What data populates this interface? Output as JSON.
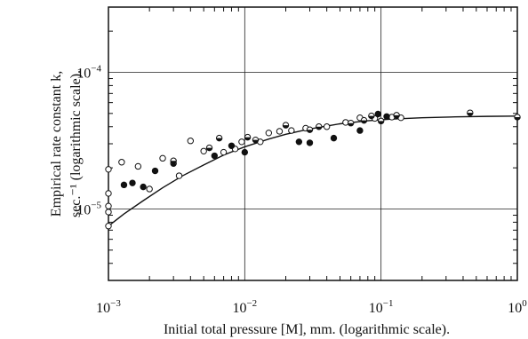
{
  "chart_data": {
    "type": "scatter",
    "title": "",
    "xlabel": "Initial total pressure [M], mm. (logarithmic scale).",
    "ylabel_line1": "Empirical rate constant k,",
    "ylabel_line2": "sec.⁻¹ (logarithmic scale).",
    "x_scale": "log",
    "y_scale": "log",
    "xlim": [
      0.001,
      1.0
    ],
    "ylim": [
      3e-06,
      0.0003
    ],
    "x_ticks": [
      {
        "base": "10",
        "exp": "−3",
        "value": 0.001
      },
      {
        "base": "10",
        "exp": "−2",
        "value": 0.01
      },
      {
        "base": "10",
        "exp": "−1",
        "value": 0.1
      },
      {
        "base": "10",
        "exp": "0",
        "value": 1.0
      }
    ],
    "y_ticks": [
      {
        "base": "10",
        "exp": "−5",
        "value": 1e-05
      },
      {
        "base": "10",
        "exp": "−4",
        "value": 0.0001
      }
    ],
    "grid": true,
    "series": [
      {
        "marker": "open-circle",
        "points": [
          [
            0.001,
            7.5e-06
          ],
          [
            0.001,
            9.5e-06
          ],
          [
            0.001,
            1.05e-05
          ],
          [
            0.001,
            1.3e-05
          ],
          [
            0.001,
            1.95e-05
          ],
          [
            0.00125,
            2.2e-05
          ],
          [
            0.00165,
            2.05e-05
          ],
          [
            0.002,
            1.4e-05
          ],
          [
            0.0025,
            2.35e-05
          ],
          [
            0.0033,
            1.75e-05
          ],
          [
            0.004,
            3.15e-05
          ],
          [
            0.005,
            2.65e-05
          ],
          [
            0.007,
            2.6e-05
          ],
          [
            0.0085,
            2.75e-05
          ],
          [
            0.0095,
            3.1e-05
          ],
          [
            0.013,
            3.1e-05
          ],
          [
            0.015,
            3.6e-05
          ],
          [
            0.018,
            3.7e-05
          ],
          [
            0.022,
            3.75e-05
          ],
          [
            0.028,
            3.9e-05
          ],
          [
            0.04,
            4e-05
          ],
          [
            0.055,
            4.3e-05
          ],
          [
            0.07,
            4.65e-05
          ],
          [
            0.09,
            4.6e-05
          ],
          [
            0.12,
            4.7e-05
          ],
          [
            0.14,
            4.65e-05
          ]
        ]
      },
      {
        "marker": "filled-circle",
        "points": [
          [
            0.0013,
            1.5e-05
          ],
          [
            0.0015,
            1.55e-05
          ],
          [
            0.0018,
            1.45e-05
          ],
          [
            0.0022,
            1.9e-05
          ],
          [
            0.006,
            2.45e-05
          ],
          [
            0.008,
            2.9e-05
          ],
          [
            0.01,
            2.6e-05
          ],
          [
            0.025,
            3.1e-05
          ],
          [
            0.03,
            3.05e-05
          ],
          [
            0.045,
            3.3e-05
          ],
          [
            0.07,
            3.75e-05
          ],
          [
            0.095,
            4.95e-05
          ],
          [
            0.11,
            4.75e-05
          ]
        ]
      },
      {
        "marker": "half-filled-circle",
        "points": [
          [
            0.003,
            2.15e-05
          ],
          [
            0.003,
            2.25e-05
          ],
          [
            0.0055,
            2.8e-05
          ],
          [
            0.0065,
            3.3e-05
          ],
          [
            0.0105,
            3.35e-05
          ],
          [
            0.012,
            3.2e-05
          ],
          [
            0.02,
            4.1e-05
          ],
          [
            0.03,
            3.8e-05
          ],
          [
            0.035,
            4e-05
          ],
          [
            0.06,
            4.25e-05
          ],
          [
            0.075,
            4.45e-05
          ],
          [
            0.085,
            4.8e-05
          ],
          [
            0.1,
            4.4e-05
          ],
          [
            0.13,
            4.85e-05
          ],
          [
            0.45,
            5.05e-05
          ],
          [
            1.0,
            4.7e-05
          ]
        ]
      }
    ],
    "curve": {
      "x": [
        0.001,
        0.0013,
        0.0018,
        0.0025,
        0.0035,
        0.005,
        0.007,
        0.01,
        0.015,
        0.02,
        0.03,
        0.05,
        0.08,
        0.12,
        0.2,
        0.35,
        0.6,
        1.0
      ],
      "y": [
        7.5e-06,
        9.2e-06,
        1.15e-05,
        1.43e-05,
        1.75e-05,
        2.1e-05,
        2.48e-05,
        2.85e-05,
        3.25e-05,
        3.52e-05,
        3.85e-05,
        4.2e-05,
        4.42e-05,
        4.55e-05,
        4.65e-05,
        4.72e-05,
        4.76e-05,
        4.78e-05
      ]
    }
  }
}
